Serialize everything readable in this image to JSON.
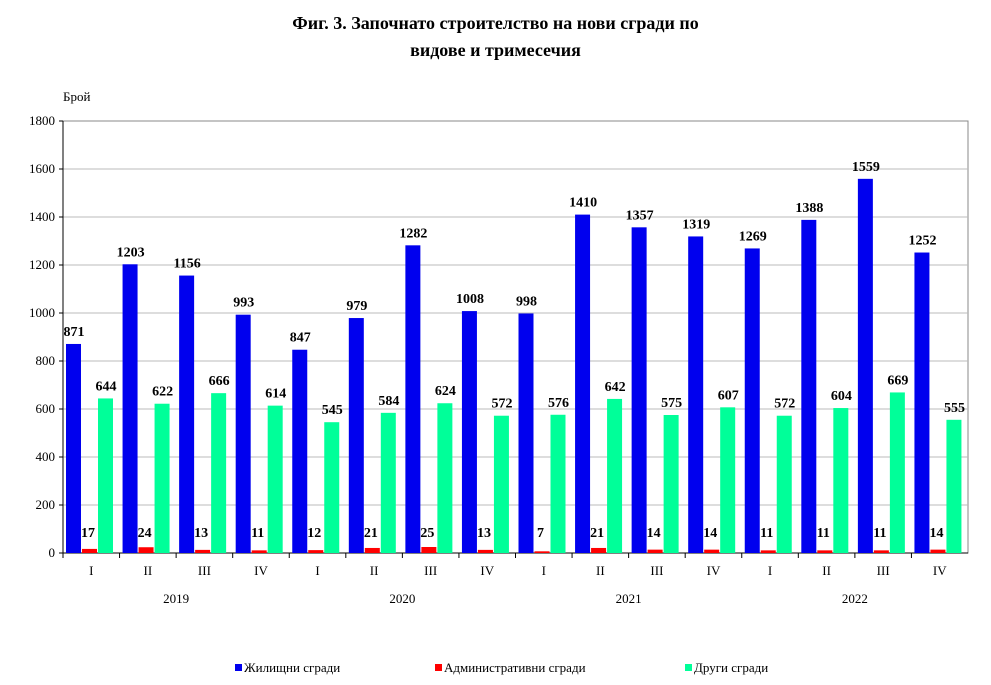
{
  "chart_data": {
    "type": "bar",
    "title_line1": "Фиг. 3. Започнато строителство на нови сгради по",
    "title_line2": "видове и тримесечия",
    "ylabel": "Брой",
    "xlabel": "",
    "ylim": [
      0,
      1800
    ],
    "yticks": [
      0,
      200,
      400,
      600,
      800,
      1000,
      1200,
      1400,
      1600,
      1800
    ],
    "grid": true,
    "legend_position": "bottom",
    "categories": [
      "I",
      "II",
      "III",
      "IV",
      "I",
      "II",
      "III",
      "IV",
      "I",
      "II",
      "III",
      "IV",
      "I",
      "II",
      "III",
      "IV"
    ],
    "years": [
      "2019",
      "2020",
      "2021",
      "2022"
    ],
    "series": [
      {
        "name": "Жилищни сгради",
        "color": "#0000ee",
        "values": [
          871,
          1203,
          1156,
          993,
          847,
          979,
          1282,
          1008,
          998,
          1410,
          1357,
          1319,
          1269,
          1388,
          1559,
          1252
        ]
      },
      {
        "name": "Административни сгради",
        "color": "#ff0000",
        "values": [
          17,
          24,
          13,
          11,
          12,
          21,
          25,
          13,
          7,
          21,
          14,
          14,
          11,
          11,
          11,
          14
        ]
      },
      {
        "name": "Други сгради",
        "color": "#00ff99",
        "values": [
          644,
          622,
          666,
          614,
          545,
          584,
          624,
          572,
          576,
          642,
          575,
          607,
          572,
          604,
          669,
          555
        ]
      }
    ]
  }
}
